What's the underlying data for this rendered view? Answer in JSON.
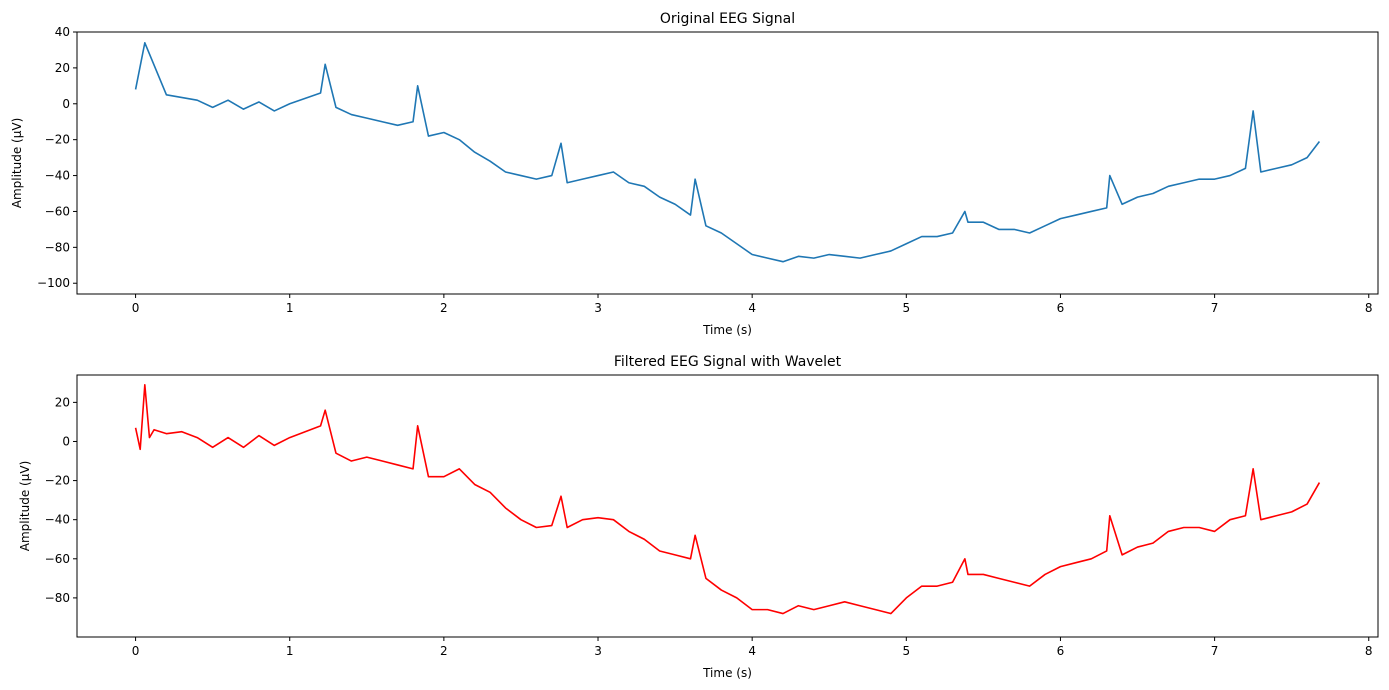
{
  "chart_data": [
    {
      "type": "line",
      "title": "Original EEG Signal",
      "xlabel": "Time (s)",
      "ylabel": "Amplitude (µV)",
      "xlim": [
        -0.38,
        8.06
      ],
      "ylim": [
        -106,
        40
      ],
      "xticks": [
        0,
        1,
        2,
        3,
        4,
        5,
        6,
        7,
        8
      ],
      "yticks": [
        -100,
        -80,
        -60,
        -40,
        -20,
        0,
        20,
        40
      ],
      "grid": false,
      "series": [
        {
          "color": "#1f77b4",
          "x": [
            0,
            0.06,
            0.2,
            0.4,
            0.5,
            0.6,
            0.7,
            0.8,
            0.9,
            1.0,
            1.1,
            1.2,
            1.23,
            1.3,
            1.4,
            1.5,
            1.6,
            1.7,
            1.8,
            1.83,
            1.9,
            2.0,
            2.1,
            2.2,
            2.3,
            2.4,
            2.5,
            2.6,
            2.7,
            2.76,
            2.8,
            2.9,
            3.0,
            3.1,
            3.2,
            3.3,
            3.4,
            3.5,
            3.6,
            3.63,
            3.7,
            3.8,
            3.9,
            4.0,
            4.1,
            4.2,
            4.3,
            4.4,
            4.5,
            4.6,
            4.7,
            4.8,
            4.9,
            5.0,
            5.1,
            5.2,
            5.3,
            5.38,
            5.4,
            5.5,
            5.6,
            5.7,
            5.8,
            5.9,
            6.0,
            6.1,
            6.2,
            6.3,
            6.32,
            6.4,
            6.5,
            6.6,
            6.7,
            6.8,
            6.9,
            7.0,
            7.1,
            7.2,
            7.25,
            7.3,
            7.4,
            7.5,
            7.6,
            7.68
          ],
          "y": [
            8,
            34,
            5,
            2,
            -2,
            2,
            -3,
            1,
            -4,
            0,
            3,
            6,
            22,
            -2,
            -6,
            -8,
            -10,
            -12,
            -10,
            10,
            -18,
            -16,
            -20,
            -27,
            -32,
            -38,
            -40,
            -42,
            -40,
            -22,
            -44,
            -42,
            -40,
            -38,
            -44,
            -46,
            -52,
            -56,
            -62,
            -42,
            -68,
            -72,
            -78,
            -84,
            -86,
            -88,
            -85,
            -86,
            -84,
            -85,
            -86,
            -84,
            -82,
            -78,
            -74,
            -74,
            -72,
            -60,
            -66,
            -66,
            -70,
            -70,
            -72,
            -68,
            -64,
            -62,
            -60,
            -58,
            -40,
            -56,
            -52,
            -50,
            -46,
            -44,
            -42,
            -42,
            -40,
            -36,
            -4,
            -38,
            -36,
            -34,
            -30,
            -21
          ]
        }
      ]
    },
    {
      "type": "line",
      "title": "Filtered EEG Signal with Wavelet",
      "xlabel": "Time (s)",
      "ylabel": "Amplitude (µV)",
      "xlim": [
        -0.38,
        8.06
      ],
      "ylim": [
        -100,
        34
      ],
      "xticks": [
        0,
        1,
        2,
        3,
        4,
        5,
        6,
        7,
        8
      ],
      "yticks": [
        -80,
        -60,
        -40,
        -20,
        0,
        20
      ],
      "grid": false,
      "series": [
        {
          "color": "#ff0000",
          "x": [
            0,
            0.03,
            0.06,
            0.09,
            0.12,
            0.2,
            0.3,
            0.4,
            0.5,
            0.6,
            0.7,
            0.8,
            0.9,
            1.0,
            1.1,
            1.2,
            1.23,
            1.3,
            1.4,
            1.5,
            1.6,
            1.7,
            1.8,
            1.83,
            1.9,
            2.0,
            2.1,
            2.2,
            2.3,
            2.4,
            2.5,
            2.6,
            2.7,
            2.76,
            2.8,
            2.9,
            3.0,
            3.1,
            3.2,
            3.3,
            3.4,
            3.5,
            3.6,
            3.63,
            3.7,
            3.8,
            3.9,
            4.0,
            4.1,
            4.2,
            4.3,
            4.4,
            4.5,
            4.6,
            4.7,
            4.8,
            4.9,
            5.0,
            5.1,
            5.2,
            5.3,
            5.38,
            5.4,
            5.5,
            5.6,
            5.7,
            5.8,
            5.9,
            6.0,
            6.1,
            6.2,
            6.3,
            6.32,
            6.4,
            6.5,
            6.6,
            6.7,
            6.8,
            6.9,
            7.0,
            7.1,
            7.2,
            7.25,
            7.3,
            7.4,
            7.5,
            7.6,
            7.68
          ],
          "y": [
            7,
            -4,
            29,
            2,
            6,
            4,
            5,
            2,
            -3,
            2,
            -3,
            3,
            -2,
            2,
            5,
            8,
            16,
            -6,
            -10,
            -8,
            -10,
            -12,
            -14,
            8,
            -18,
            -18,
            -14,
            -22,
            -26,
            -34,
            -40,
            -44,
            -43,
            -28,
            -44,
            -40,
            -39,
            -40,
            -46,
            -50,
            -56,
            -58,
            -60,
            -48,
            -70,
            -76,
            -80,
            -86,
            -86,
            -88,
            -84,
            -86,
            -84,
            -82,
            -84,
            -86,
            -88,
            -80,
            -74,
            -74,
            -72,
            -60,
            -68,
            -68,
            -70,
            -72,
            -74,
            -68,
            -64,
            -62,
            -60,
            -56,
            -38,
            -58,
            -54,
            -52,
            -46,
            -44,
            -44,
            -46,
            -40,
            -38,
            -14,
            -40,
            -38,
            -36,
            -32,
            -21
          ]
        }
      ]
    }
  ]
}
